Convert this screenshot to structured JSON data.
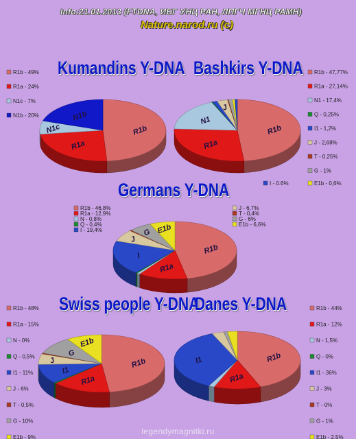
{
  "page": {
    "header": "Info:21.01.2013 (FTDNA, ИБГ УНЦ РАН, ЛПГЧ МГНЦ РАМН)",
    "site": "Nature.narod.ru (c)",
    "footer": "legendymagnitki.ru"
  },
  "colors": {
    "R1b": "#d86a6a",
    "R1a": "#e01818",
    "N": "#a8c8e0",
    "N1c": "#a8c8e0",
    "N1b": "#1018c8",
    "Q": "#1a8a30",
    "I": "#2848c8",
    "I1": "#2848c8",
    "J": "#d8c8a0",
    "T": "#a83820",
    "G": "#a0a0a0",
    "E1b": "#e8e020"
  },
  "chart_data": [
    {
      "type": "pie",
      "title": "Kumandins Y-DNA",
      "legend": [
        {
          "label": "R1b - 49%",
          "key": "R1b"
        },
        {
          "label": "R1a - 24%",
          "key": "R1a"
        },
        {
          "label": "N1c - 7%",
          "key": "N1c"
        },
        {
          "label": "N1b - 20%",
          "key": "N1b"
        }
      ],
      "slices": [
        {
          "key": "R1b",
          "value": 49,
          "label": "R1b"
        },
        {
          "key": "R1a",
          "value": 24,
          "label": "R1a"
        },
        {
          "key": "N1c",
          "value": 7,
          "label": "N1c"
        },
        {
          "key": "N1b",
          "value": 20,
          "label": "N1b"
        }
      ]
    },
    {
      "type": "pie",
      "title": "Bashkirs Y-DNA",
      "legend": [
        {
          "label": "R1b - 47,77%",
          "key": "R1b"
        },
        {
          "label": "R1a - 27,14%",
          "key": "R1a"
        },
        {
          "label": "N1 - 17,4%",
          "key": "N"
        },
        {
          "label": "Q - 0,25%",
          "key": "Q"
        },
        {
          "label": "I1 - 1,2%",
          "key": "I1"
        },
        {
          "label": "J - 2,68%",
          "key": "J"
        },
        {
          "label": "T - 0,25%",
          "key": "T"
        },
        {
          "label": "G - 1%",
          "key": "G"
        },
        {
          "label": "E1b - 0,6%",
          "key": "E1b"
        },
        {
          "label": "I - 0.6%",
          "key": "I"
        }
      ],
      "slices": [
        {
          "key": "R1b",
          "value": 47.77,
          "label": "R1b"
        },
        {
          "key": "R1a",
          "value": 27.14,
          "label": "R1a"
        },
        {
          "key": "N",
          "value": 17.4,
          "label": "N1"
        },
        {
          "key": "Q",
          "value": 0.25,
          "label": ""
        },
        {
          "key": "I1",
          "value": 1.2,
          "label": ""
        },
        {
          "key": "J",
          "value": 2.68,
          "label": "J"
        },
        {
          "key": "T",
          "value": 0.25,
          "label": ""
        },
        {
          "key": "G",
          "value": 1,
          "label": ""
        },
        {
          "key": "E1b",
          "value": 0.6,
          "label": ""
        },
        {
          "key": "I",
          "value": 0.6,
          "label": ""
        }
      ]
    },
    {
      "type": "pie",
      "title": "Germans Y-DNA",
      "legend": [
        {
          "label": "R1b - 46,8%",
          "key": "R1b"
        },
        {
          "label": "R1a - 12,9%",
          "key": "R1a"
        },
        {
          "label": "N - 0,8%",
          "key": "N"
        },
        {
          "label": "Q - 0,4%",
          "key": "Q"
        },
        {
          "label": "I - 19,4%",
          "key": "I"
        },
        {
          "label": "J - 6,7%",
          "key": "J"
        },
        {
          "label": "T - 0,4%",
          "key": "T"
        },
        {
          "label": "G - 6%",
          "key": "G"
        },
        {
          "label": "E1b - 6,6%",
          "key": "E1b"
        }
      ],
      "slices": [
        {
          "key": "R1b",
          "value": 46.8,
          "label": "R1b"
        },
        {
          "key": "R1a",
          "value": 12.9,
          "label": "R1a"
        },
        {
          "key": "N",
          "value": 0.8,
          "label": ""
        },
        {
          "key": "Q",
          "value": 0.4,
          "label": ""
        },
        {
          "key": "I",
          "value": 19.4,
          "label": "I"
        },
        {
          "key": "J",
          "value": 6.7,
          "label": "J"
        },
        {
          "key": "T",
          "value": 0.4,
          "label": ""
        },
        {
          "key": "G",
          "value": 6,
          "label": "G"
        },
        {
          "key": "E1b",
          "value": 6.6,
          "label": "E1b"
        }
      ]
    },
    {
      "type": "pie",
      "title": "Swiss people Y-DNA",
      "legend": [
        {
          "label": "R1b - 48%",
          "key": "R1b"
        },
        {
          "label": "R1a - 15%",
          "key": "R1a"
        },
        {
          "label": "N - 0%",
          "key": "N"
        },
        {
          "label": "Q - 0,5%",
          "key": "Q"
        },
        {
          "label": "I1 - 11%",
          "key": "I1"
        },
        {
          "label": "J - 6%",
          "key": "J"
        },
        {
          "label": "T - 0,5%",
          "key": "T"
        },
        {
          "label": "G - 10%",
          "key": "G"
        },
        {
          "label": "E1b - 9%",
          "key": "E1b"
        }
      ],
      "slices": [
        {
          "key": "R1b",
          "value": 48,
          "label": "R1b"
        },
        {
          "key": "R1a",
          "value": 15,
          "label": "R1a"
        },
        {
          "key": "Q",
          "value": 0.5,
          "label": ""
        },
        {
          "key": "I1",
          "value": 11,
          "label": "I1"
        },
        {
          "key": "J",
          "value": 6,
          "label": "J"
        },
        {
          "key": "T",
          "value": 0.5,
          "label": ""
        },
        {
          "key": "G",
          "value": 10,
          "label": "G"
        },
        {
          "key": "E1b",
          "value": 9,
          "label": "E1b"
        }
      ]
    },
    {
      "type": "pie",
      "title": "Danes Y-DNA",
      "legend": [
        {
          "label": "R1b - 44%",
          "key": "R1b"
        },
        {
          "label": "R1a - 12%",
          "key": "R1a"
        },
        {
          "label": "N - 1,5%",
          "key": "N"
        },
        {
          "label": "Q - 0%",
          "key": "Q"
        },
        {
          "label": "I1 - 36%",
          "key": "I1"
        },
        {
          "label": "J - 3%",
          "key": "J"
        },
        {
          "label": "T - 0%",
          "key": "T"
        },
        {
          "label": "G - 1%",
          "key": "G"
        },
        {
          "label": "E1b - 2,5%",
          "key": "E1b"
        }
      ],
      "slices": [
        {
          "key": "R1b",
          "value": 44,
          "label": "R1b"
        },
        {
          "key": "R1a",
          "value": 12,
          "label": "R1a"
        },
        {
          "key": "N",
          "value": 1.5,
          "label": ""
        },
        {
          "key": "I1",
          "value": 36,
          "label": "I1"
        },
        {
          "key": "J",
          "value": 3,
          "label": ""
        },
        {
          "key": "G",
          "value": 1,
          "label": ""
        },
        {
          "key": "E1b",
          "value": 2.5,
          "label": ""
        }
      ]
    }
  ]
}
